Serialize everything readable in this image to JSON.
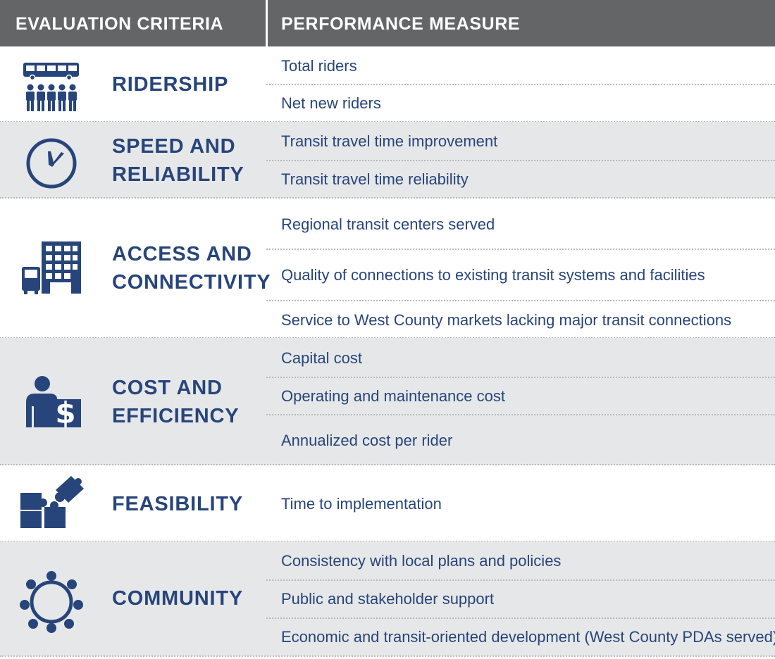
{
  "header": {
    "col1": "EVALUATION CRITERIA",
    "col2": "PERFORMANCE MEASURE"
  },
  "criteria": [
    {
      "icon": "bus-riders-icon",
      "label_lines": [
        "RIDERSHIP"
      ],
      "measures": [
        "Total riders",
        "Net new riders"
      ]
    },
    {
      "icon": "clock-icon",
      "label_lines": [
        "SPEED AND",
        "RELIABILITY"
      ],
      "measures": [
        "Transit travel time improvement",
        "Transit travel time reliability"
      ]
    },
    {
      "icon": "building-bus-icon",
      "label_lines": [
        "ACCESS AND",
        "CONNECTIVITY"
      ],
      "measures": [
        "Regional transit centers served",
        "Quality of connections to existing transit systems and facilities",
        "Service to West County markets lacking major transit connections"
      ]
    },
    {
      "icon": "person-dollar-icon",
      "label_lines": [
        "COST AND",
        "EFFICIENCY"
      ],
      "measures": [
        "Capital cost",
        "Operating and maintenance cost",
        "Annualized cost per rider"
      ]
    },
    {
      "icon": "puzzle-icon",
      "label_lines": [
        "FEASIBILITY"
      ],
      "measures": [
        "Time to implementation"
      ]
    },
    {
      "icon": "community-circle-icon",
      "label_lines": [
        "COMMUNITY"
      ],
      "measures": [
        "Consistency with local plans and policies",
        "Public and stakeholder support",
        "Economic and transit-oriented development (West County PDAs served)"
      ]
    }
  ],
  "colors": {
    "header_bg": "#646567",
    "accent_blue": "#27457b",
    "shaded_row": "#e6e7e8",
    "dotted_rule": "#b8b9bb"
  }
}
